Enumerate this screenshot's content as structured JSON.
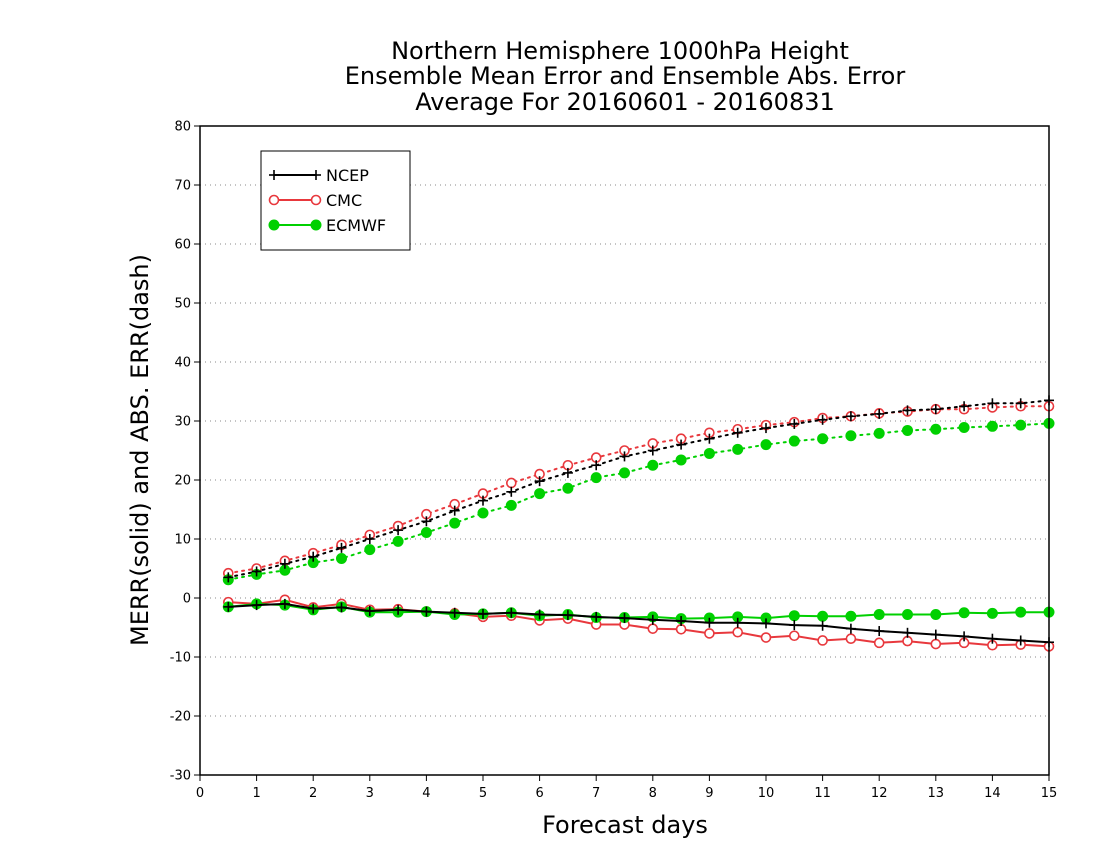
{
  "chart_data": {
    "type": "line",
    "title_lines": [
      "Northern Hemisphere 1000hPa Height",
      "Ensemble Mean Error and Ensemble Abs. Error",
      "Average For 20160601 - 20160831"
    ],
    "xlabel": "Forecast days",
    "ylabel": "MERR(solid) and ABS. ERR(dash)",
    "xlim": [
      0,
      15
    ],
    "ylim": [
      -30,
      80
    ],
    "xticks": [
      "0",
      "1",
      "2",
      "3",
      "4",
      "5",
      "6",
      "7",
      "8",
      "9",
      "10",
      "11",
      "12",
      "13",
      "14",
      "15"
    ],
    "yticks": [
      "80",
      "70",
      "60",
      "50",
      "40",
      "30",
      "20",
      "10",
      "0",
      "-10",
      "-20",
      "-30"
    ],
    "ytick_values": [
      80,
      70,
      60,
      50,
      40,
      30,
      20,
      10,
      0,
      -10,
      -20,
      -30
    ],
    "grid": "horizontal dotted",
    "legend_position": "top-left",
    "x": [
      0.5,
      1,
      1.5,
      2,
      2.5,
      3,
      3.5,
      4,
      4.5,
      5,
      5.5,
      6,
      6.5,
      7,
      7.5,
      8,
      8.5,
      9,
      9.5,
      10,
      10.5,
      11,
      11.5,
      12,
      12.5,
      13,
      13.5,
      14,
      14.5,
      15
    ],
    "series": [
      {
        "name": "NCEP",
        "color": "#000000",
        "marker": "plus",
        "merr": [
          -1.5,
          -1.2,
          -1,
          -1.8,
          -1.6,
          -2.2,
          -2.0,
          -2.3,
          -2.5,
          -2.7,
          -2.5,
          -2.8,
          -2.9,
          -3.2,
          -3.4,
          -3.7,
          -3.9,
          -4.2,
          -4.2,
          -4.3,
          -4.6,
          -4.7,
          -5.2,
          -5.6,
          -5.9,
          -6.2,
          -6.5,
          -6.9,
          -7.2,
          -7.5
        ],
        "abs_err": [
          3.5,
          4.5,
          5.8,
          7.0,
          8.5,
          10.0,
          11.5,
          13.0,
          14.8,
          16.5,
          18.0,
          19.8,
          21.2,
          22.5,
          24.0,
          25.0,
          26.0,
          27.0,
          28.0,
          28.8,
          29.5,
          30.2,
          30.8,
          31.2,
          31.8,
          32.0,
          32.5,
          33.0,
          33.0,
          33.5
        ]
      },
      {
        "name": "CMC",
        "color": "#e8383d",
        "marker": "open-circle",
        "merr": [
          -0.7,
          -1.0,
          -0.3,
          -1.6,
          -1.0,
          -2.0,
          -1.9,
          -2.3,
          -2.6,
          -3.2,
          -3.0,
          -3.8,
          -3.5,
          -4.5,
          -4.5,
          -5.2,
          -5.3,
          -6.0,
          -5.8,
          -6.7,
          -6.4,
          -7.2,
          -6.9,
          -7.6,
          -7.3,
          -7.8,
          -7.6,
          -8.0,
          -7.9,
          -8.2
        ],
        "abs_err": [
          4.2,
          5.0,
          6.3,
          7.6,
          9.0,
          10.7,
          12.2,
          14.2,
          15.9,
          17.7,
          19.5,
          21.0,
          22.5,
          23.8,
          25.0,
          26.2,
          27.0,
          28.0,
          28.6,
          29.3,
          29.8,
          30.5,
          30.8,
          31.3,
          31.6,
          32.0,
          32.0,
          32.3,
          32.5,
          32.5
        ]
      },
      {
        "name": "ECMWF",
        "color": "#00d000",
        "marker": "filled-circle",
        "merr": [
          -1.5,
          -1.0,
          -1.2,
          -2.0,
          -1.5,
          -2.4,
          -2.4,
          -2.3,
          -2.8,
          -2.7,
          -2.5,
          -3.0,
          -2.8,
          -3.3,
          -3.3,
          -3.2,
          -3.5,
          -3.4,
          -3.2,
          -3.4,
          -3.0,
          -3.1,
          -3.1,
          -2.8,
          -2.8,
          -2.8,
          -2.5,
          -2.6,
          -2.4,
          -2.4
        ],
        "abs_err": [
          3.1,
          4.0,
          4.7,
          6.0,
          6.7,
          8.2,
          9.6,
          11.1,
          12.7,
          14.4,
          15.7,
          17.7,
          18.6,
          20.4,
          21.2,
          22.5,
          23.4,
          24.5,
          25.2,
          26.0,
          26.6,
          27.0,
          27.5,
          27.9,
          28.4,
          28.6,
          28.9,
          29.1,
          29.3,
          29.6
        ]
      }
    ]
  }
}
